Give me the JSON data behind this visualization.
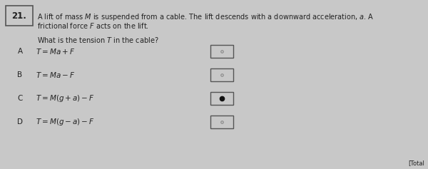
{
  "question_number": "21.",
  "desc_line1": "A lift of mass $M$ is suspended from a cable. The lift descends with a downward acceleration, $a$. A",
  "desc_line2": "frictional force $F$ acts on the lift.",
  "sub_question": "What is the tension $T$ in the cable?",
  "options": [
    {
      "label": "A",
      "formula": "$T = Ma + F$"
    },
    {
      "label": "B",
      "formula": "$T = Ma - F$"
    },
    {
      "label": "C",
      "formula": "$T = M(g + a) - F$"
    },
    {
      "label": "D",
      "formula": "$T = M(g - a) - F$"
    }
  ],
  "selected_option": "C",
  "bg_color": "#c8c8c8",
  "box_face_color": "#d4d4d4",
  "box_edge_color": "#555555",
  "ans_box_face": "#c8c8c8",
  "ans_box_edge": "#555555",
  "text_color": "#222222",
  "dot_color": "#111111",
  "faint_dot_color": "#888888",
  "total_text": "[Total",
  "figw": 6.0,
  "figh": 2.37,
  "dpi": 100
}
